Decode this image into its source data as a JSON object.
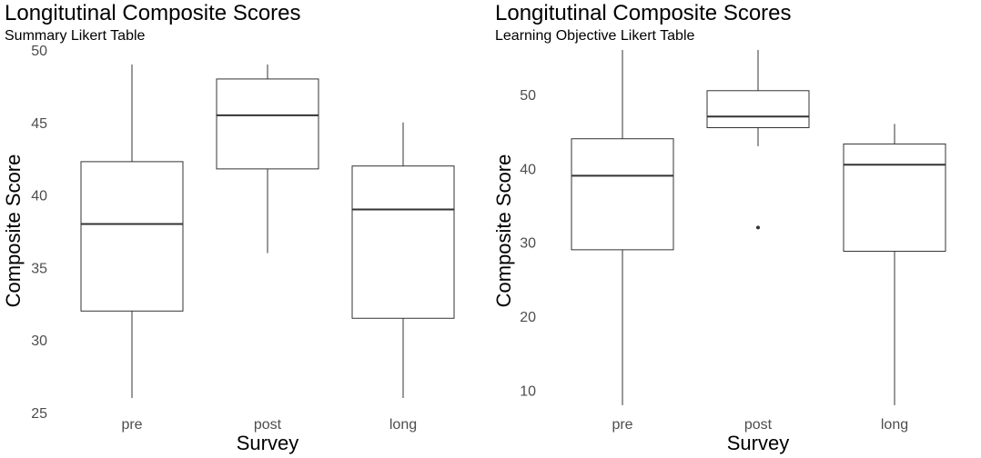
{
  "chart_data": [
    {
      "type": "box",
      "title": "Longitutinal Composite Scores",
      "subtitle": "Summary Likert Table",
      "xlabel": "Survey",
      "ylabel": "Composite Score",
      "ylim": [
        25,
        50
      ],
      "yticks": [
        25,
        30,
        35,
        40,
        45,
        50
      ],
      "grid": false,
      "categories": [
        "pre",
        "post",
        "long"
      ],
      "boxes": [
        {
          "category": "pre",
          "min": 26,
          "q1": 32,
          "median": 38,
          "q3": 42.3,
          "max": 49,
          "outliers": []
        },
        {
          "category": "post",
          "min": 36,
          "q1": 41.8,
          "median": 45.5,
          "q3": 48,
          "max": 49,
          "outliers": []
        },
        {
          "category": "long",
          "min": 26,
          "q1": 31.5,
          "median": 39,
          "q3": 42,
          "max": 45,
          "outliers": []
        }
      ]
    },
    {
      "type": "box",
      "title": "Longitutinal Composite Scores",
      "subtitle": "Learning Objective Likert Table",
      "xlabel": "Survey",
      "ylabel": "Composite Score",
      "ylim": [
        7,
        56
      ],
      "yticks": [
        10,
        20,
        30,
        40,
        50
      ],
      "grid": false,
      "categories": [
        "pre",
        "post",
        "long"
      ],
      "boxes": [
        {
          "category": "pre",
          "min": 8,
          "q1": 29,
          "median": 39,
          "q3": 44,
          "max": 56,
          "outliers": []
        },
        {
          "category": "post",
          "min": 43,
          "q1": 45.5,
          "median": 47,
          "q3": 50.5,
          "max": 56,
          "outliers": [
            32
          ]
        },
        {
          "category": "long",
          "min": 8,
          "q1": 28.8,
          "median": 40.5,
          "q3": 43.3,
          "max": 46,
          "outliers": []
        }
      ]
    }
  ]
}
